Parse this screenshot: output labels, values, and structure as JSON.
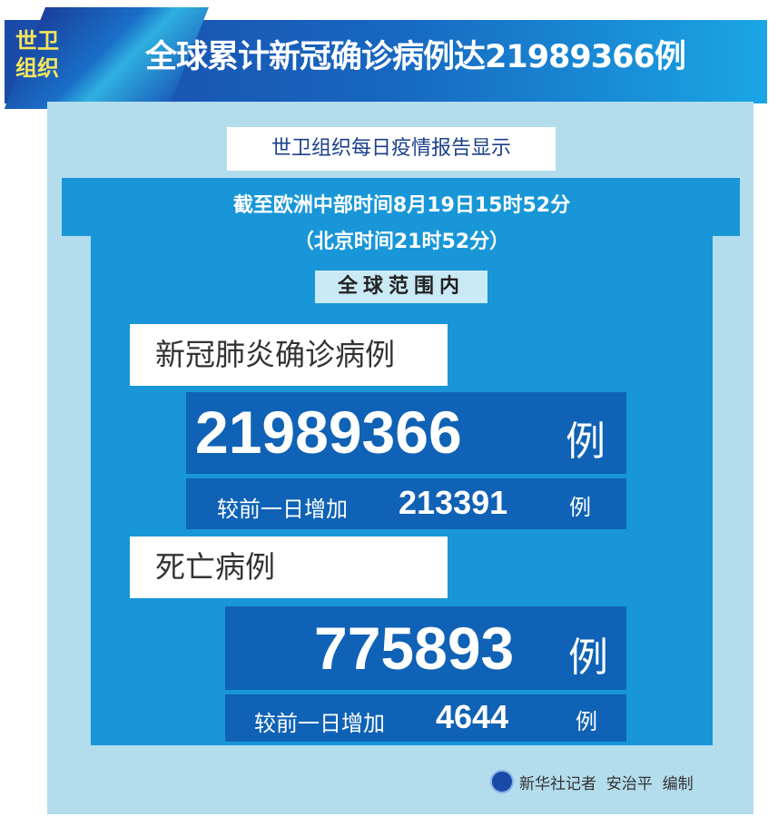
{
  "header": {
    "badge_line1": "世卫",
    "badge_line2": "组织",
    "title": "全球累计新冠确诊病例达21989366例"
  },
  "subtitle": "世卫组织每日疫情报告显示",
  "time": {
    "cet": "截至欧洲中部时间8月19日15时52分",
    "beijing": "（北京时间21时52分）"
  },
  "scope": "全球范围内",
  "confirmed": {
    "label": "新冠肺炎确诊病例",
    "total": "21989366",
    "unit": "例",
    "increase_label": "较前一日增加",
    "increase": "213391",
    "increase_unit": "例"
  },
  "deaths": {
    "label": "死亡病例",
    "total": "775893",
    "unit": "例",
    "increase_label": "较前一日增加",
    "increase": "4644",
    "increase_unit": "例"
  },
  "footer": {
    "credit": "新华社记者  安治平  编制",
    "logo_icon": "xinhua-logo-icon"
  }
}
